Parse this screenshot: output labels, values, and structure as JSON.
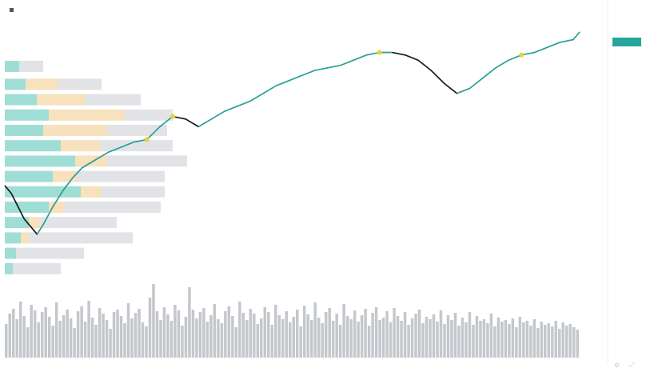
{
  "header": {
    "symbol_line": "",
    "indicator_line": "",
    "sub_line": ""
  },
  "colors": {
    "up": "#26a69a",
    "down": "#1a1a1a",
    "highlight": "#e8d23a",
    "volume": "#c4c7cc",
    "profile_teal": "#7fd3c7",
    "profile_orange": "#f6d7a7",
    "profile_grey": "#d7dadf",
    "axis_text": "#c3c7ce"
  },
  "icons": {
    "settings": "gear-icon",
    "scale": "scale-icon"
  },
  "y_axis": {
    "ticks": [
      "",
      "",
      "",
      "",
      "",
      "",
      "",
      "",
      "",
      "",
      "",
      "",
      "",
      "",
      "",
      "",
      "",
      "",
      "",
      "",
      ""
    ]
  },
  "x_axis": {
    "ticks": [
      "",
      "",
      "",
      "",
      "",
      "",
      "",
      "",
      ""
    ]
  },
  "chart_data": {
    "type": "line",
    "title": "",
    "xlabel": "",
    "ylabel": "",
    "grid": false,
    "price_path": [
      {
        "i": 0,
        "v": 40
      },
      {
        "i": 2,
        "v": 37
      },
      {
        "i": 4,
        "v": 32
      },
      {
        "i": 6,
        "v": 27
      },
      {
        "i": 8,
        "v": 24
      },
      {
        "i": 10,
        "v": 21
      },
      {
        "i": 12,
        "v": 25
      },
      {
        "i": 15,
        "v": 32
      },
      {
        "i": 18,
        "v": 38
      },
      {
        "i": 21,
        "v": 43
      },
      {
        "i": 24,
        "v": 47
      },
      {
        "i": 28,
        "v": 50
      },
      {
        "i": 32,
        "v": 53
      },
      {
        "i": 36,
        "v": 55
      },
      {
        "i": 40,
        "v": 57
      },
      {
        "i": 44,
        "v": 58
      },
      {
        "i": 48,
        "v": 63
      },
      {
        "i": 52,
        "v": 67
      },
      {
        "i": 56,
        "v": 66
      },
      {
        "i": 60,
        "v": 63
      },
      {
        "i": 64,
        "v": 66
      },
      {
        "i": 68,
        "v": 69
      },
      {
        "i": 72,
        "v": 71
      },
      {
        "i": 76,
        "v": 73
      },
      {
        "i": 80,
        "v": 76
      },
      {
        "i": 84,
        "v": 79
      },
      {
        "i": 88,
        "v": 81
      },
      {
        "i": 92,
        "v": 83
      },
      {
        "i": 96,
        "v": 85
      },
      {
        "i": 100,
        "v": 86
      },
      {
        "i": 104,
        "v": 87
      },
      {
        "i": 108,
        "v": 89
      },
      {
        "i": 112,
        "v": 91
      },
      {
        "i": 116,
        "v": 92
      },
      {
        "i": 120,
        "v": 92
      },
      {
        "i": 124,
        "v": 91
      },
      {
        "i": 128,
        "v": 89
      },
      {
        "i": 132,
        "v": 85
      },
      {
        "i": 136,
        "v": 80
      },
      {
        "i": 140,
        "v": 76
      },
      {
        "i": 144,
        "v": 78
      },
      {
        "i": 148,
        "v": 82
      },
      {
        "i": 152,
        "v": 86
      },
      {
        "i": 156,
        "v": 89
      },
      {
        "i": 160,
        "v": 91
      },
      {
        "i": 164,
        "v": 92
      },
      {
        "i": 168,
        "v": 94
      },
      {
        "i": 172,
        "v": 96
      },
      {
        "i": 176,
        "v": 97
      },
      {
        "i": 178,
        "v": 100
      }
    ],
    "volume": [
      42,
      55,
      61,
      48,
      70,
      52,
      38,
      66,
      59,
      44,
      57,
      63,
      51,
      40,
      69,
      46,
      53,
      60,
      49,
      37,
      58,
      64,
      45,
      71,
      50,
      41,
      62,
      55,
      47,
      36,
      57,
      60,
      52,
      43,
      68,
      49,
      56,
      61,
      44,
      39,
      75,
      92,
      58,
      47,
      63,
      54,
      46,
      66,
      59,
      40,
      51,
      88,
      60,
      49,
      57,
      62,
      45,
      53,
      67,
      48,
      43,
      58,
      64,
      52,
      38,
      70,
      56,
      47,
      61,
      55,
      42,
      49,
      63,
      57,
      41,
      66,
      53,
      48,
      58,
      44,
      51,
      60,
      39,
      65,
      54,
      47,
      69,
      50,
      43,
      57,
      62,
      46,
      55,
      41,
      67,
      52,
      48,
      59,
      45,
      53,
      61,
      40,
      56,
      63,
      47,
      50,
      58,
      44,
      62,
      52,
      46,
      57,
      41,
      49,
      55,
      60,
      43,
      51,
      48,
      54,
      45,
      59,
      42,
      53,
      47,
      56,
      40,
      50,
      44,
      57,
      41,
      52,
      46,
      48,
      43,
      55,
      39,
      50,
      45,
      47,
      42,
      49,
      38,
      51,
      44,
      46,
      40,
      48,
      37,
      45,
      41,
      43,
      39,
      46,
      36,
      44,
      40,
      42,
      38,
      35
    ],
    "volume_profile": [
      {
        "y": 0.95,
        "teal": 18,
        "orange": 0,
        "grey": 30
      },
      {
        "y": 0.88,
        "teal": 26,
        "orange": 40,
        "grey": 55
      },
      {
        "y": 0.82,
        "teal": 40,
        "orange": 60,
        "grey": 70
      },
      {
        "y": 0.76,
        "teal": 55,
        "orange": 95,
        "grey": 60
      },
      {
        "y": 0.7,
        "teal": 48,
        "orange": 80,
        "grey": 75
      },
      {
        "y": 0.64,
        "teal": 70,
        "orange": 50,
        "grey": 90
      },
      {
        "y": 0.58,
        "teal": 88,
        "orange": 40,
        "grey": 100
      },
      {
        "y": 0.52,
        "teal": 60,
        "orange": 30,
        "grey": 110
      },
      {
        "y": 0.46,
        "teal": 95,
        "orange": 25,
        "grey": 80
      },
      {
        "y": 0.4,
        "teal": 55,
        "orange": 20,
        "grey": 120
      },
      {
        "y": 0.34,
        "teal": 30,
        "orange": 15,
        "grey": 95
      },
      {
        "y": 0.28,
        "teal": 20,
        "orange": 10,
        "grey": 130
      },
      {
        "y": 0.22,
        "teal": 14,
        "orange": 0,
        "grey": 85
      },
      {
        "y": 0.16,
        "teal": 10,
        "orange": 0,
        "grey": 60
      }
    ],
    "highlights": [
      43,
      52,
      116,
      160
    ]
  }
}
